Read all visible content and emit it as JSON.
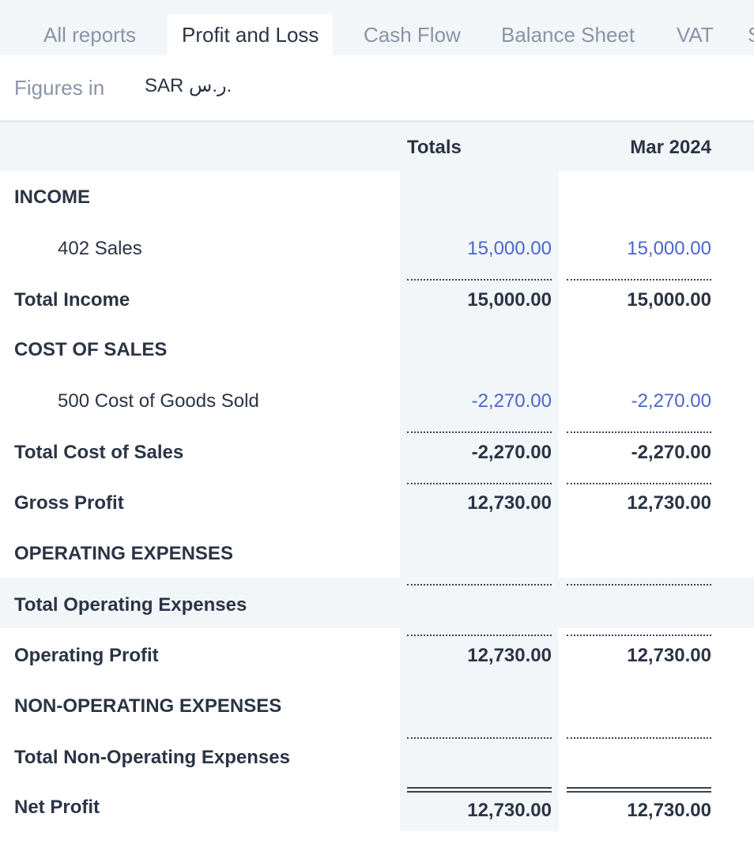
{
  "tabs": [
    {
      "label": "All reports"
    },
    {
      "label": "Profit and Loss"
    },
    {
      "label": "Cash Flow"
    },
    {
      "label": "Balance Sheet"
    },
    {
      "label": "VAT"
    },
    {
      "label": "S"
    }
  ],
  "figures": {
    "label": "Figures in",
    "currency": "SAR ر.س."
  },
  "columns": {
    "totals": "Totals",
    "period": "Mar 2024"
  },
  "rows": [
    {
      "label": "INCOME",
      "totals": "",
      "period": ""
    },
    {
      "label": "402 Sales",
      "totals": "15,000.00",
      "period": "15,000.00"
    },
    {
      "label": "Total Income",
      "totals": "15,000.00",
      "period": "15,000.00"
    },
    {
      "label": "COST OF SALES",
      "totals": "",
      "period": ""
    },
    {
      "label": "500 Cost of Goods Sold",
      "totals": "-2,270.00",
      "period": "-2,270.00"
    },
    {
      "label": "Total Cost of Sales",
      "totals": "-2,270.00",
      "period": "-2,270.00"
    },
    {
      "label": "Gross Profit",
      "totals": "12,730.00",
      "period": "12,730.00"
    },
    {
      "label": "OPERATING EXPENSES",
      "totals": "",
      "period": ""
    },
    {
      "label": "Total Operating Expenses",
      "totals": "",
      "period": ""
    },
    {
      "label": "Operating Profit",
      "totals": "12,730.00",
      "period": "12,730.00"
    },
    {
      "label": "NON-OPERATING EXPENSES",
      "totals": "",
      "period": ""
    },
    {
      "label": "Total Non-Operating Expenses",
      "totals": "",
      "period": ""
    },
    {
      "label": "Net Profit",
      "totals": "12,730.00",
      "period": "12,730.00"
    }
  ]
}
